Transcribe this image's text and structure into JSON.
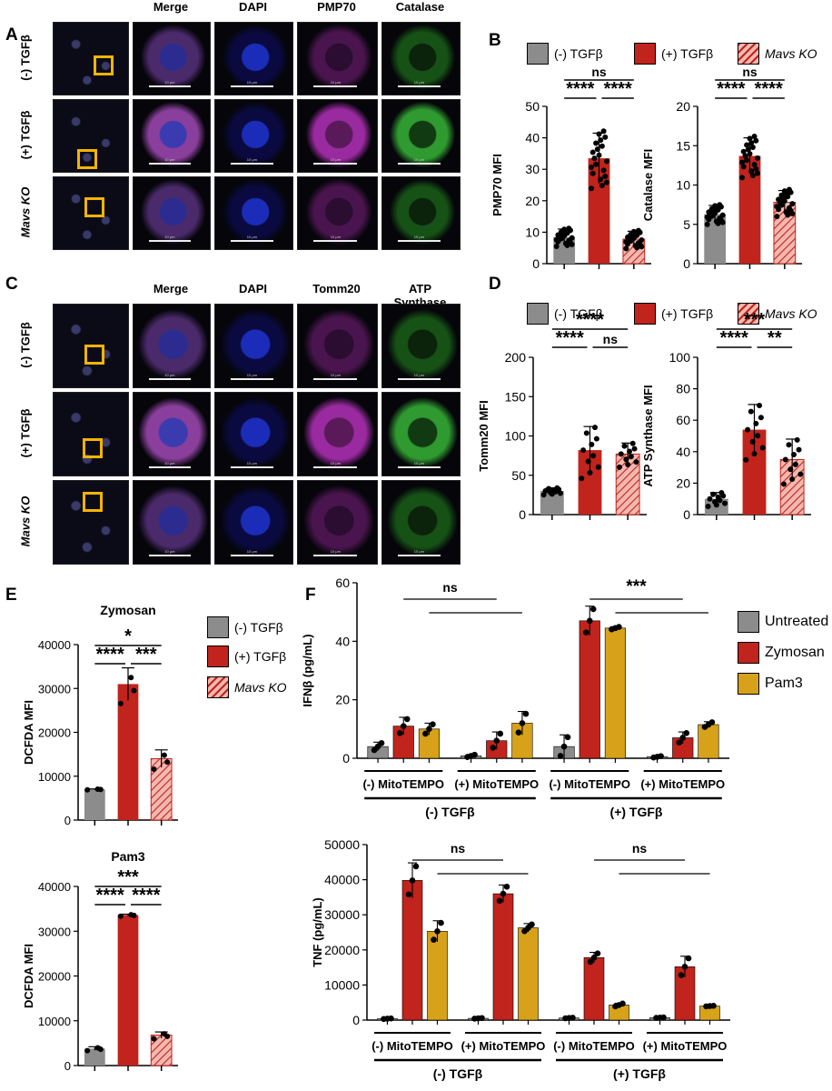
{
  "panels": {
    "a": "A",
    "b": "B",
    "c": "C",
    "d": "D",
    "e": "E",
    "f": "F"
  },
  "microscopy_a": {
    "cols": [
      "Merge",
      "DAPI",
      "PMP70",
      "Catalase"
    ],
    "rows": [
      "(-) TGFβ",
      "(+) TGFβ",
      "Mavs KO"
    ],
    "scale": "10 μm"
  },
  "microscopy_c": {
    "cols": [
      "Merge",
      "DAPI",
      "Tomm20",
      "ATP Synthase"
    ],
    "rows": [
      "(-) TGFβ",
      "(+) TGFβ",
      "Mavs KO"
    ],
    "scale": "10 μm"
  },
  "legend3": {
    "neg": "(-) TGFβ",
    "pos": "(+) TGFβ",
    "ko": "Mavs KO"
  },
  "legendF": {
    "untreated": "Untreated",
    "zymosan": "Zymosan",
    "pam3": "Pam3"
  },
  "colors": {
    "gray": "#8c8c8c",
    "red": "#c0241c",
    "gold": "#d7a21a",
    "ko_fill": "#f2b8b0"
  },
  "chart_data": [
    {
      "id": "B1",
      "type": "bar",
      "ylabel": "PMP70 MFI",
      "ylim": [
        0,
        50
      ],
      "ticks": [
        0,
        10,
        20,
        30,
        40,
        50
      ],
      "categories": [
        "(-) TGFβ",
        "(+) TGFβ",
        "Mavs KO"
      ],
      "values": [
        8.5,
        33.5,
        7.8
      ],
      "errors": [
        2.5,
        8,
        2.5
      ],
      "sig": [
        {
          "a": 0,
          "b": 1,
          "t": "****"
        },
        {
          "a": 1,
          "b": 2,
          "t": "****"
        },
        {
          "a": 0,
          "b": 2,
          "t": "ns"
        }
      ]
    },
    {
      "id": "B2",
      "type": "bar",
      "ylabel": "Catalase MFI",
      "ylim": [
        0,
        20
      ],
      "ticks": [
        0,
        5,
        10,
        15,
        20
      ],
      "categories": [
        "(-) TGFβ",
        "(+) TGFβ",
        "Mavs KO"
      ],
      "values": [
        6.3,
        13.7,
        7.8
      ],
      "errors": [
        1.1,
        2.3,
        1.5
      ],
      "sig": [
        {
          "a": 0,
          "b": 1,
          "t": "****"
        },
        {
          "a": 1,
          "b": 2,
          "t": "****"
        },
        {
          "a": 0,
          "b": 2,
          "t": "ns"
        }
      ]
    },
    {
      "id": "D1",
      "type": "bar",
      "ylabel": "Tomm20 MFI",
      "ylim": [
        0,
        200
      ],
      "ticks": [
        0,
        50,
        100,
        150,
        200
      ],
      "categories": [
        "(-) TGFβ",
        "(+) TGFβ",
        "Mavs KO"
      ],
      "values": [
        30,
        82,
        77
      ],
      "errors": [
        4,
        30,
        14
      ],
      "sig": [
        {
          "a": 0,
          "b": 1,
          "t": "****"
        },
        {
          "a": 1,
          "b": 2,
          "t": "ns"
        },
        {
          "a": 0,
          "b": 2,
          "t": "****"
        }
      ]
    },
    {
      "id": "D2",
      "type": "bar",
      "ylabel": "ATP Synthase MFI",
      "ylim": [
        0,
        100
      ],
      "ticks": [
        0,
        20,
        40,
        60,
        80,
        100
      ],
      "categories": [
        "(-) TGFβ",
        "(+) TGFβ",
        "Mavs KO"
      ],
      "values": [
        10,
        54,
        35
      ],
      "errors": [
        4,
        16,
        13
      ],
      "sig": [
        {
          "a": 0,
          "b": 1,
          "t": "****"
        },
        {
          "a": 1,
          "b": 2,
          "t": "**"
        },
        {
          "a": 0,
          "b": 2,
          "t": "***"
        }
      ]
    },
    {
      "id": "E1",
      "type": "bar",
      "title": "Zymosan",
      "ylabel": "DCFDA MFI",
      "ylim": [
        0,
        40000
      ],
      "ticks": [
        0,
        10000,
        20000,
        30000,
        40000
      ],
      "categories": [
        "(-) TGFβ",
        "(+) TGFβ",
        "Mavs KO"
      ],
      "values": [
        7000,
        31000,
        14000
      ],
      "errors": [
        100,
        3700,
        2000
      ],
      "sig": [
        {
          "a": 0,
          "b": 1,
          "t": "****"
        },
        {
          "a": 1,
          "b": 2,
          "t": "***"
        },
        {
          "a": 0,
          "b": 2,
          "t": "*"
        }
      ]
    },
    {
      "id": "E2",
      "type": "bar",
      "title": "Pam3",
      "ylabel": "DCFDA MFI",
      "ylim": [
        0,
        40000
      ],
      "ticks": [
        0,
        10000,
        20000,
        30000,
        40000
      ],
      "categories": [
        "(-) TGFβ",
        "(+) TGFβ",
        "Mavs KO"
      ],
      "values": [
        3800,
        33600,
        6800
      ],
      "errors": [
        400,
        200,
        700
      ],
      "sig": [
        {
          "a": 0,
          "b": 1,
          "t": "****"
        },
        {
          "a": 1,
          "b": 2,
          "t": "****"
        },
        {
          "a": 0,
          "b": 2,
          "t": "***"
        }
      ]
    },
    {
      "id": "F1",
      "type": "bar",
      "ylabel": "IFNβ (pg/mL)",
      "ylim": [
        0,
        60
      ],
      "ticks": [
        0,
        20,
        40,
        60
      ],
      "groups": [
        "(-) MitoTEMPO",
        "(+) MitoTEMPO",
        "(-) MitoTEMPO",
        "(+) MitoTEMPO"
      ],
      "supergroups": [
        "(-) TGFβ",
        "(+) TGFβ"
      ],
      "series": [
        {
          "name": "Untreated",
          "values": [
            4,
            0.8,
            4,
            0.5
          ],
          "errors": [
            1.5,
            0.5,
            4,
            0.3
          ]
        },
        {
          "name": "Zymosan",
          "values": [
            11,
            6,
            47,
            7
          ],
          "errors": [
            3,
            3,
            5,
            2
          ]
        },
        {
          "name": "Pam3",
          "values": [
            10,
            12,
            44.5,
            11.5
          ],
          "errors": [
            2,
            4,
            0.5,
            1
          ]
        }
      ],
      "sig": [
        {
          "t": "ns",
          "g": 0
        },
        {
          "t": "***",
          "g": 2
        }
      ]
    },
    {
      "id": "F2",
      "type": "bar",
      "ylabel": "TNF (pg/mL)",
      "ylim": [
        0,
        50000
      ],
      "ticks": [
        0,
        10000,
        20000,
        30000,
        40000,
        50000
      ],
      "groups": [
        "(-) MitoTEMPO",
        "(+) MitoTEMPO",
        "(-) MitoTEMPO",
        "(+) MitoTEMPO"
      ],
      "supergroups": [
        "(-) TGFβ",
        "(+) TGFβ"
      ],
      "series": [
        {
          "name": "Untreated",
          "values": [
            400,
            500,
            600,
            700
          ],
          "errors": [
            100,
            100,
            100,
            100
          ]
        },
        {
          "name": "Zymosan",
          "values": [
            39800,
            36000,
            17800,
            15200
          ],
          "errors": [
            5000,
            2500,
            1500,
            3000
          ]
        },
        {
          "name": "Pam3",
          "values": [
            25300,
            26300,
            4300,
            4000
          ],
          "errors": [
            3000,
            1200,
            500,
            100
          ]
        }
      ],
      "sig": [
        {
          "t": "ns",
          "g": 0
        },
        {
          "t": "ns",
          "g": 2
        }
      ]
    }
  ]
}
